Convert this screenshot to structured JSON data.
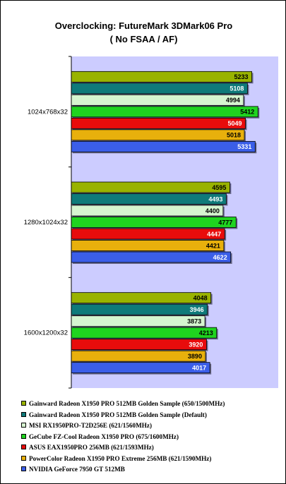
{
  "chart_data": {
    "type": "bar",
    "orientation": "horizontal",
    "title": [
      "Overclocking: FutureMark 3DMark06 Pro",
      "( No FSAA / AF)"
    ],
    "categories": [
      "1024x768x32",
      "1280x1024x32",
      "1600x1200x32"
    ],
    "xlim": [
      0,
      6000
    ],
    "grid": false,
    "legend_position": "bottom",
    "plot_background": "#ccccff",
    "series": [
      {
        "name": "Gainward Radeon X1950 PRO 512MB Golden Sample (650/1500MHz)",
        "color": "#99b300",
        "label_color": "#000000",
        "values": [
          5233,
          4595,
          4048
        ]
      },
      {
        "name": "Gainward Radeon X1950 PRO 512MB Golden Sample (Default)",
        "color": "#0f7a7a",
        "label_color": "#ffffff",
        "values": [
          5108,
          4493,
          3946
        ]
      },
      {
        "name": "MSI RX1950PRO-T2D256E (621/1560MHz)",
        "color": "#d6f5d0",
        "label_color": "#000000",
        "values": [
          4994,
          4400,
          3873
        ]
      },
      {
        "name": "GeCube FZ-Cool Radeon X1950 PRO (675/1600MHz)",
        "color": "#1fd41f",
        "label_color": "#000000",
        "values": [
          5412,
          4777,
          4213
        ]
      },
      {
        "name": "ASUS EAX1950PRO 256MB (621/1593MHz)",
        "color": "#e80c0c",
        "label_color": "#ffffff",
        "values": [
          5049,
          4447,
          3920
        ]
      },
      {
        "name": "PowerColor Radeon X1950 PRO Extreme 256MB (621/1590MHz)",
        "color": "#e8b00c",
        "label_color": "#000000",
        "values": [
          5018,
          4421,
          3890
        ]
      },
      {
        "name": "NVIDIA GeForce 7950 GT 512MB",
        "color": "#3b5ee8",
        "label_color": "#ffffff",
        "values": [
          5331,
          4622,
          4017
        ]
      }
    ]
  }
}
